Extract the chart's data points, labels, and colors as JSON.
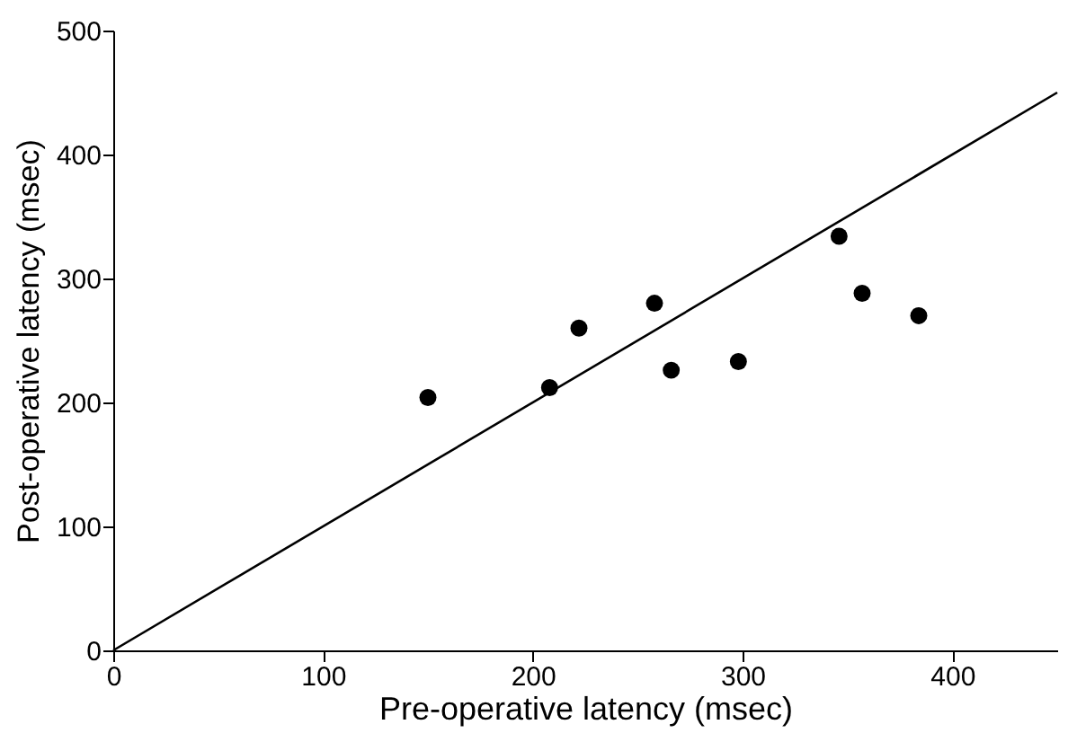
{
  "chart_data": {
    "type": "scatter",
    "xlabel": "Pre-operative latency (msec)",
    "ylabel": "Post-operative latency (msec)",
    "xlim": [
      0,
      450
    ],
    "ylim": [
      0,
      500
    ],
    "xticks": [
      0,
      100,
      200,
      300,
      400
    ],
    "yticks": [
      0,
      100,
      200,
      300,
      400,
      500
    ],
    "grid": false,
    "marker": "circle",
    "series": [
      {
        "color": "#000000",
        "x": [
          150,
          208,
          222,
          258,
          266,
          298,
          346,
          357,
          384
        ],
        "values": [
          204,
          212,
          260,
          280,
          226,
          233,
          334,
          288,
          270
        ]
      },
      {
        "type": "line",
        "marker": "none",
        "color": "#000000",
        "x": [
          0,
          450
        ],
        "values": [
          0,
          450
        ]
      }
    ]
  }
}
